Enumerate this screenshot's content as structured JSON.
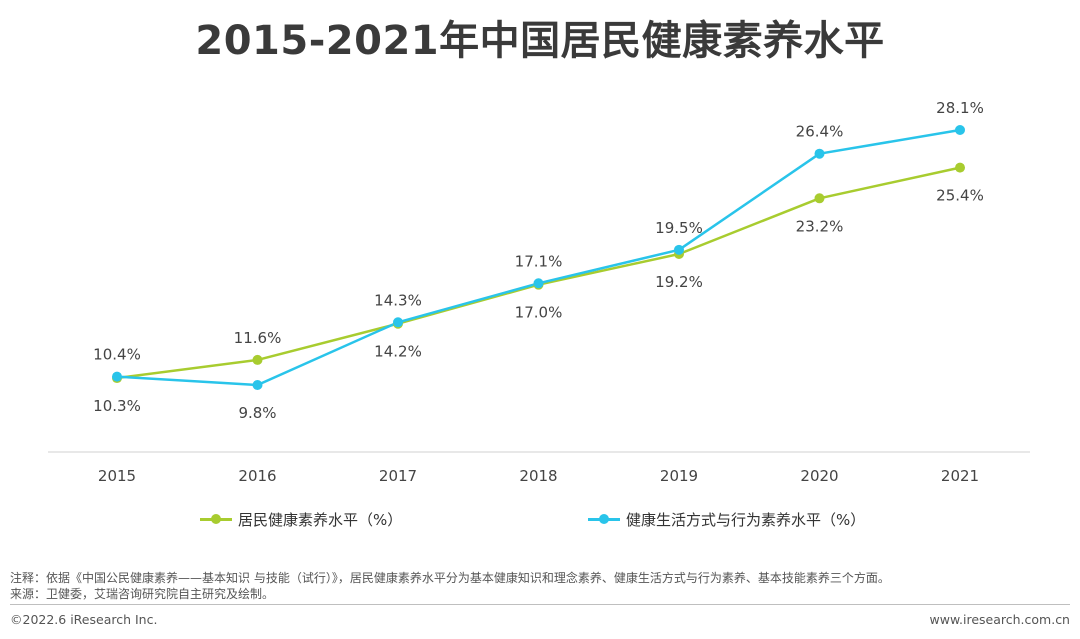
{
  "header": {
    "title": "2015-2021年中国居民健康素养水平"
  },
  "chart_data": {
    "type": "line",
    "categories": [
      "2015",
      "2016",
      "2017",
      "2018",
      "2019",
      "2020",
      "2021"
    ],
    "ylim": [
      0,
      30
    ],
    "grid": false,
    "legend_position": "bottom",
    "series": [
      {
        "name": "居民健康素养水平（%）",
        "color": "#a8cc2f",
        "values": [
          10.3,
          11.6,
          14.2,
          17.0,
          19.2,
          23.2,
          25.4
        ],
        "labels": [
          "10.3%",
          "11.6%",
          "14.2%",
          "17.0%",
          "19.2%",
          "23.2%",
          "25.4%"
        ],
        "label_sides": [
          "below",
          "above",
          "below",
          "below",
          "below",
          "below",
          "below"
        ]
      },
      {
        "name": "健康生活方式与行为素养水平（%）",
        "color": "#29c4ea",
        "values": [
          10.4,
          9.8,
          14.3,
          17.1,
          19.5,
          26.4,
          28.1
        ],
        "labels": [
          "10.4%",
          "9.8%",
          "14.3%",
          "17.1%",
          "19.5%",
          "26.4%",
          "28.1%"
        ],
        "label_sides": [
          "above",
          "below",
          "above",
          "above",
          "above",
          "above",
          "above"
        ]
      }
    ]
  },
  "notes": {
    "note": "注释：依据《中国公民健康素养——基本知识 与技能（试行）》，居民健康素养水平分为基本健康知识和理念素养、健康生活方式与行为素养、基本技能素养三个方面。",
    "source": "来源：卫健委，艾瑞咨询研究院自主研究及绘制。"
  },
  "footer": {
    "copyright": "©2022.6 iResearch Inc.",
    "website": "www.iresearch.com.cn"
  }
}
